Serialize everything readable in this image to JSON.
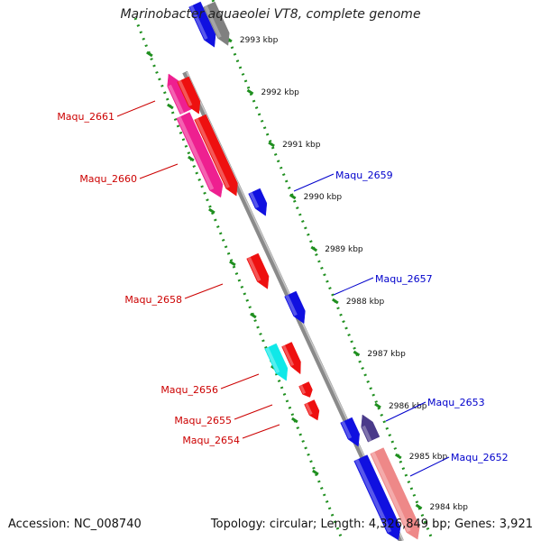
{
  "title": "Marinobacter aquaeolei VT8, complete genome",
  "footer": {
    "accession": "Accession: NC_008740",
    "topology": "Topology: circular; Length: 4,326,849 bp; Genes: 3,921"
  },
  "colors": {
    "backbone": "#8a8a8a",
    "tick_ruler": "#1f8f1f",
    "forward_label": "#0000cc",
    "reverse_label": "#cc0000",
    "gene_blue": "#1010e0",
    "gene_red": "#ee1010",
    "gene_pink": "#ee2090",
    "gene_cyan": "#10e8e8",
    "gene_navy": "#4a3a8a",
    "gene_salmon": "#ee8888",
    "gene_gray": "#808080"
  },
  "kbp_ticks": [
    "2993 kbp",
    "2992 kbp",
    "2991 kbp",
    "2990 kbp",
    "2989 kbp",
    "2988 kbp",
    "2987 kbp",
    "2986 kbp",
    "2985 kbp",
    "2984 kbp"
  ],
  "forward_gene_labels": [
    "Maqu_2659",
    "Maqu_2657",
    "Maqu_2653",
    "Maqu_2652"
  ],
  "reverse_gene_labels": [
    "Maqu_2661",
    "Maqu_2660",
    "Maqu_2658",
    "Maqu_2656",
    "Maqu_2655",
    "Maqu_2654"
  ]
}
